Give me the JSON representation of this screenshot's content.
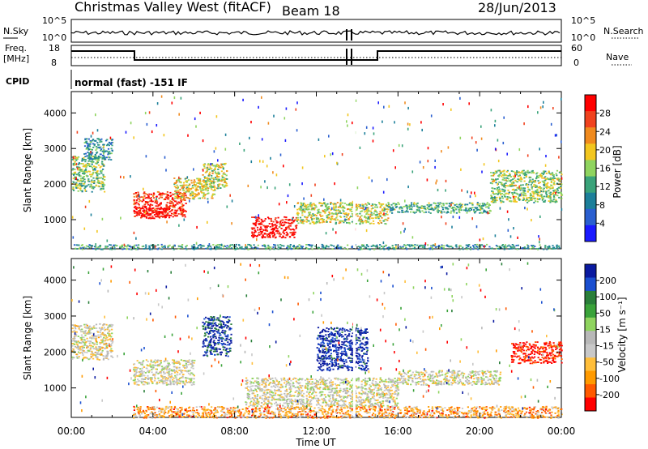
{
  "header": {
    "station": "Christmas Valley West (fitACF)",
    "beam": "Beam 18",
    "date": "28/Jun/2013"
  },
  "nsky_panel": {
    "left_label": "N.Sky",
    "left_ticks": [
      "10^5",
      "10^0"
    ],
    "right_ticks": [
      "10^5",
      "10^0"
    ],
    "right_label": "N.Search"
  },
  "freq_panel": {
    "left_label_1": "Freq.",
    "left_label_2": "[MHz]",
    "left_ticks": [
      "18",
      "8"
    ],
    "right_ticks": [
      "60",
      "0"
    ],
    "right_label": "Nave"
  },
  "cpid": {
    "label": "CPID",
    "value": "normal (fast) -151 IF"
  },
  "chart_data": [
    {
      "type": "heatmap",
      "title": "",
      "ylabel": "Slant Range [km]",
      "xlabel": "Time UT",
      "x_ticks": [
        "00:00",
        "04:00",
        "08:00",
        "12:00",
        "16:00",
        "20:00",
        "00:00"
      ],
      "y_ticks": [
        "1000",
        "2000",
        "3000",
        "4000"
      ],
      "xlim_hours": [
        0,
        24
      ],
      "ylim_km": [
        180,
        4600
      ],
      "colorbar": {
        "label": "Power [dB]",
        "ticks": [
          "28",
          "24",
          "20",
          "16",
          "12",
          "8",
          "4"
        ],
        "colors": [
          "#1a1aff",
          "#2a5fd0",
          "#1c7f9a",
          "#3aa37a",
          "#8fd45f",
          "#f2c61f",
          "#f08a1e",
          "#f0421e",
          "#ff0000"
        ]
      },
      "regions": [
        {
          "t0": 0.0,
          "t1": 1.6,
          "r0": 1800,
          "r1": 2800,
          "level": 0.45
        },
        {
          "t0": 0.6,
          "t1": 2.0,
          "r0": 2700,
          "r1": 3300,
          "level": 0.3
        },
        {
          "t0": 3.0,
          "t1": 5.6,
          "r0": 1100,
          "r1": 1800,
          "level": 0.9
        },
        {
          "t0": 3.2,
          "t1": 4.8,
          "r0": 1050,
          "r1": 1350,
          "level": 1.0
        },
        {
          "t0": 5.0,
          "t1": 7.0,
          "r0": 1600,
          "r1": 2200,
          "level": 0.6
        },
        {
          "t0": 6.4,
          "t1": 7.6,
          "r0": 1900,
          "r1": 2600,
          "level": 0.55
        },
        {
          "t0": 8.8,
          "t1": 11.0,
          "r0": 500,
          "r1": 1100,
          "level": 0.95
        },
        {
          "t0": 11.0,
          "t1": 15.5,
          "r0": 900,
          "r1": 1500,
          "level": 0.55
        },
        {
          "t0": 15.5,
          "t1": 20.5,
          "r0": 1200,
          "r1": 1500,
          "level": 0.4
        },
        {
          "t0": 20.5,
          "t1": 24.0,
          "r0": 1500,
          "r1": 2400,
          "level": 0.5
        },
        {
          "t0": 0.0,
          "t1": 24.0,
          "r0": 180,
          "r1": 320,
          "level": 0.35
        }
      ]
    },
    {
      "type": "heatmap",
      "title": "",
      "ylabel": "Slant Range [km]",
      "xlabel": "Time UT",
      "x_ticks": [
        "00:00",
        "04:00",
        "08:00",
        "12:00",
        "16:00",
        "20:00",
        "00:00"
      ],
      "y_ticks": [
        "1000",
        "2000",
        "3000",
        "4000"
      ],
      "xlim_hours": [
        0,
        24
      ],
      "ylim_km": [
        180,
        4600
      ],
      "colorbar": {
        "label": "Velocity [m s⁻¹]",
        "ticks": [
          "200",
          "100",
          "50",
          "15",
          "-15",
          "-50",
          "-100",
          "-200"
        ],
        "colors": [
          "#ff0000",
          "#ff5a00",
          "#ff9a00",
          "#ffbe3a",
          "#c8c8c8",
          "#b8b8b8",
          "#8fd45f",
          "#3aa33a",
          "#2a7f3a",
          "#1a4fd0",
          "#0a1aa0"
        ]
      },
      "regions": [
        {
          "t0": 0.0,
          "t1": 2.0,
          "r0": 1800,
          "r1": 2800,
          "level": 0.42
        },
        {
          "t0": 3.0,
          "t1": 6.0,
          "r0": 1100,
          "r1": 1800,
          "level": 0.45
        },
        {
          "t0": 6.4,
          "t1": 7.8,
          "r0": 1900,
          "r1": 3000,
          "level": 0.9
        },
        {
          "t0": 8.5,
          "t1": 16.0,
          "r0": 500,
          "r1": 1300,
          "level": 0.45
        },
        {
          "t0": 12.0,
          "t1": 14.5,
          "r0": 1500,
          "r1": 2700,
          "level": 0.95
        },
        {
          "t0": 16.0,
          "t1": 21.0,
          "r0": 1100,
          "r1": 1500,
          "level": 0.45
        },
        {
          "t0": 21.5,
          "t1": 24.0,
          "r0": 1700,
          "r1": 2300,
          "level": 0.02
        },
        {
          "t0": 3.0,
          "t1": 24.0,
          "r0": 180,
          "r1": 500,
          "level": 0.25
        }
      ]
    }
  ]
}
